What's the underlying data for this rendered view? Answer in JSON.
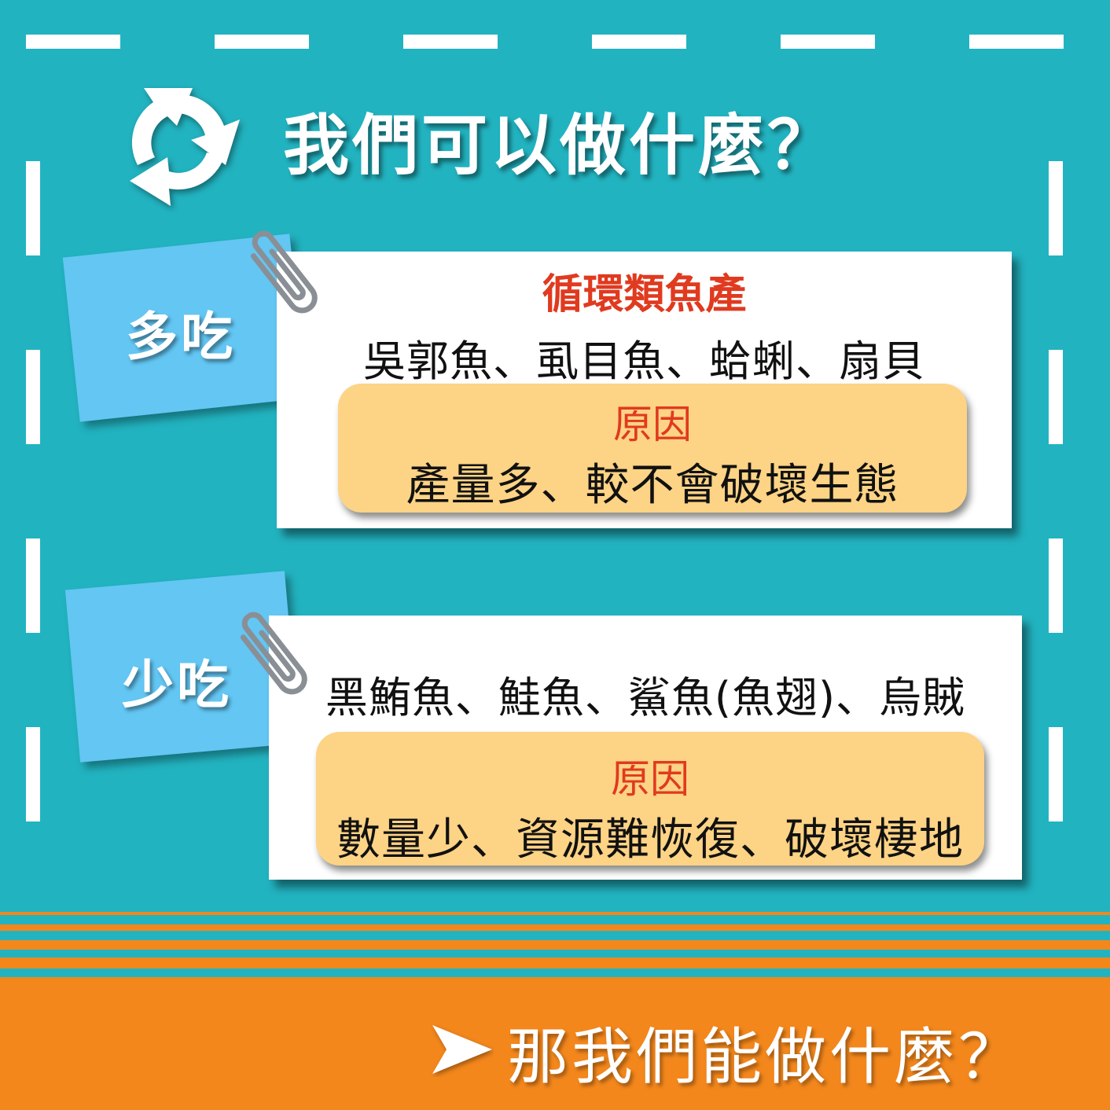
{
  "header": {
    "icon": "recycle-icon",
    "title": "我們可以做什麼？"
  },
  "eat_more": {
    "tag": "多吃",
    "heading": "循環類魚產",
    "items": "吳郭魚、虱目魚、蛤蜊、扇貝",
    "reason_label": "原因",
    "reason_text": "產量多、較不會破壞生態"
  },
  "eat_less": {
    "tag": "少吃",
    "items": "黑鮪魚、鮭魚、鯊魚(魚翅)、烏賊",
    "reason_label": "原因",
    "reason_text": "數量少、資源難恢復、破壞棲地"
  },
  "footer": {
    "icon": "arrow-right-icon",
    "text": "那我們能做什麼？"
  },
  "colors": {
    "background": "#22b3c0",
    "tag": "#63c6f3",
    "reason_box": "#fdd385",
    "accent_red": "#e03a1f",
    "footer": "#f3871c"
  }
}
